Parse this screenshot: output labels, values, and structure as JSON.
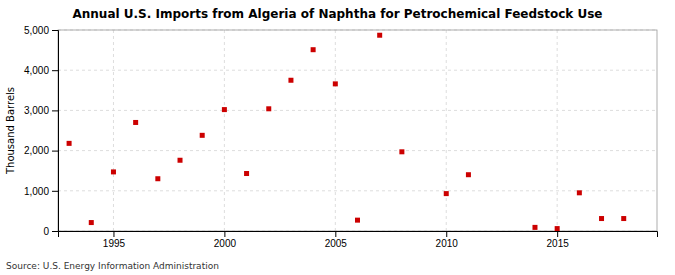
{
  "chart_data": {
    "type": "scatter",
    "title": "Annual U.S. Imports from Algeria of Naphtha for Petrochemical Feedstock Use",
    "y_label": "Thousand Barrels",
    "annotations": [
      "Source: U.S. Energy Information Administration"
    ],
    "x": [
      1993,
      1994,
      1995,
      1996,
      1997,
      1998,
      1999,
      2000,
      2001,
      2002,
      2003,
      2004,
      2005,
      2006,
      2007,
      2008,
      2010,
      2011,
      2014,
      2015,
      2016,
      2017,
      2018
    ],
    "values": [
      2180,
      210,
      1470,
      2700,
      1300,
      1760,
      2380,
      3020,
      1430,
      3040,
      3750,
      4510,
      3660,
      270,
      4870,
      1970,
      930,
      1400,
      90,
      60,
      950,
      310,
      310
    ],
    "color": "#cc0000",
    "marker": "square",
    "grid": true,
    "xlim": [
      1992.5,
      2019.5
    ],
    "ylim": [
      0,
      5000
    ],
    "xticks": [
      1995,
      2000,
      2005,
      2010,
      2015
    ],
    "yticks": [
      0,
      {
        "value": 1000,
        "label": "1,000"
      },
      {
        "value": 2000,
        "label": "2,000"
      },
      {
        "value": 3000,
        "label": "3,000"
      },
      {
        "value": 4000,
        "label": "4,000"
      },
      {
        "value": 5000,
        "label": "5,000"
      }
    ]
  }
}
